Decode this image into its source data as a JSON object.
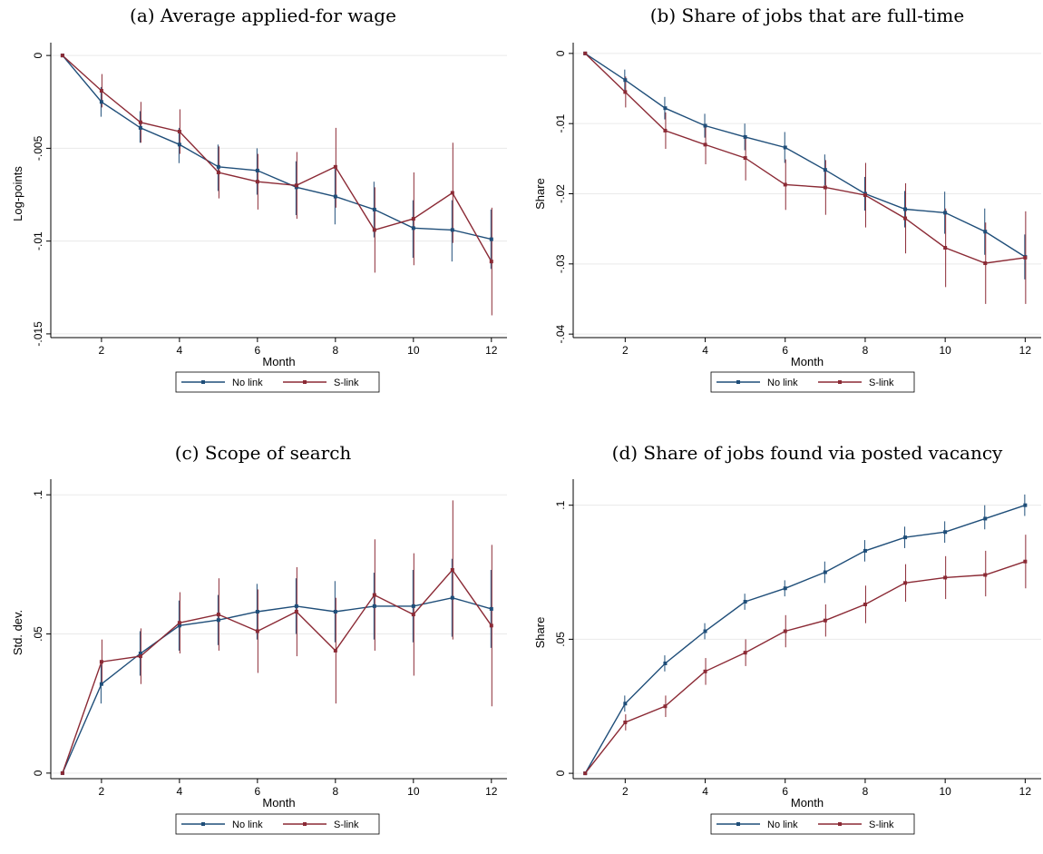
{
  "colors": {
    "no_link": "#1f4e79",
    "s_link": "#8b2a35",
    "grid": "#eaeaea"
  },
  "chart_data": [
    {
      "type": "line",
      "title": "(a) Average applied-for wage",
      "xlabel": "Month",
      "ylabel": "Log-points",
      "xlim": [
        0.7,
        12.4
      ],
      "ylim": [
        -0.0152,
        0.0003
      ],
      "xticks": [
        2,
        4,
        6,
        8,
        10,
        12
      ],
      "xtick_labels": [
        "2",
        "4",
        "6",
        "8",
        "10",
        "12"
      ],
      "yticks": [
        0,
        -0.005,
        -0.01,
        -0.015
      ],
      "ytick_labels": [
        "0",
        "-.005",
        "-.01",
        "-.015"
      ],
      "grid": true,
      "legend": {
        "position": "bottom-center",
        "entries": [
          "No link",
          "S-link"
        ]
      },
      "x": [
        1,
        2,
        3,
        4,
        5,
        6,
        7,
        8,
        9,
        10,
        11,
        12
      ],
      "series": [
        {
          "name": "No link",
          "values": [
            0,
            -0.0025,
            -0.0039,
            -0.0048,
            -0.006,
            -0.0062,
            -0.0071,
            -0.0076,
            -0.0083,
            -0.0093,
            -0.0094,
            -0.0099
          ],
          "ci_low": [
            0,
            -0.0033,
            -0.0047,
            -0.0058,
            -0.0073,
            -0.0075,
            -0.0086,
            -0.0091,
            -0.0098,
            -0.0109,
            -0.0111,
            -0.0115
          ],
          "ci_high": [
            0,
            -0.0017,
            -0.003,
            -0.0039,
            -0.0048,
            -0.005,
            -0.0057,
            -0.0061,
            -0.0068,
            -0.0078,
            -0.0078,
            -0.0083
          ]
        },
        {
          "name": "S-link",
          "values": [
            0,
            -0.0019,
            -0.0036,
            -0.0041,
            -0.0063,
            -0.0068,
            -0.007,
            -0.006,
            -0.0094,
            -0.0088,
            -0.0074,
            -0.0111
          ],
          "ci_low": [
            0,
            -0.0028,
            -0.0047,
            -0.0053,
            -0.0077,
            -0.0083,
            -0.0088,
            -0.0082,
            -0.0117,
            -0.0113,
            -0.0101,
            -0.014
          ],
          "ci_high": [
            0,
            -0.001,
            -0.0025,
            -0.0029,
            -0.0049,
            -0.0053,
            -0.0052,
            -0.0039,
            -0.0071,
            -0.0063,
            -0.0047,
            -0.0082
          ]
        }
      ]
    },
    {
      "type": "line",
      "title": "(b) Share of jobs that are full-time",
      "xlabel": "Month",
      "ylabel": "Share",
      "xlim": [
        0.7,
        12.4
      ],
      "ylim": [
        -0.0405,
        0.0005
      ],
      "xticks": [
        2,
        4,
        6,
        8,
        10,
        12
      ],
      "xtick_labels": [
        "2",
        "4",
        "6",
        "8",
        "10",
        "12"
      ],
      "yticks": [
        0,
        -0.01,
        -0.02,
        -0.03,
        -0.04
      ],
      "ytick_labels": [
        "0",
        "-.01",
        "-.02",
        "-.03",
        "-.04"
      ],
      "grid": true,
      "legend": {
        "position": "bottom-center",
        "entries": [
          "No link",
          "S-link"
        ]
      },
      "x": [
        1,
        2,
        3,
        4,
        5,
        6,
        7,
        8,
        9,
        10,
        11,
        12
      ],
      "series": [
        {
          "name": "No link",
          "values": [
            0,
            -0.0038,
            -0.0078,
            -0.0103,
            -0.0119,
            -0.0134,
            -0.0166,
            -0.02,
            -0.0222,
            -0.0227,
            -0.0254,
            -0.029
          ],
          "ci_low": [
            0,
            -0.0053,
            -0.0094,
            -0.012,
            -0.0138,
            -0.0156,
            -0.0188,
            -0.0224,
            -0.0248,
            -0.0257,
            -0.0287,
            -0.0322
          ],
          "ci_high": [
            0,
            -0.0023,
            -0.0062,
            -0.0086,
            -0.01,
            -0.0112,
            -0.0144,
            -0.0176,
            -0.0196,
            -0.0197,
            -0.0221,
            -0.0258
          ]
        },
        {
          "name": "S-link",
          "values": [
            0,
            -0.0055,
            -0.011,
            -0.013,
            -0.0149,
            -0.0187,
            -0.0191,
            -0.0202,
            -0.0235,
            -0.0277,
            -0.0299,
            -0.0291
          ],
          "ci_low": [
            0,
            -0.0077,
            -0.0136,
            -0.0158,
            -0.0181,
            -0.0223,
            -0.023,
            -0.0248,
            -0.0285,
            -0.0333,
            -0.0357,
            -0.0357
          ],
          "ci_high": [
            0,
            -0.0033,
            -0.0084,
            -0.0102,
            -0.0117,
            -0.0151,
            -0.0152,
            -0.0156,
            -0.0185,
            -0.0221,
            -0.0241,
            -0.0225
          ]
        }
      ]
    },
    {
      "type": "line",
      "title": "(c) Scope of search",
      "xlabel": "Month",
      "ylabel": "Std. dev.",
      "xlim": [
        0.7,
        12.4
      ],
      "ylim": [
        -0.002,
        0.103
      ],
      "xticks": [
        2,
        4,
        6,
        8,
        10,
        12
      ],
      "xtick_labels": [
        "2",
        "4",
        "6",
        "8",
        "10",
        "12"
      ],
      "yticks": [
        0,
        0.05,
        0.1
      ],
      "ytick_labels": [
        "0",
        ".05",
        ".1"
      ],
      "grid": true,
      "legend": {
        "position": "bottom-center",
        "entries": [
          "No link",
          "S-link"
        ]
      },
      "x": [
        1,
        2,
        3,
        4,
        5,
        6,
        7,
        8,
        9,
        10,
        11,
        12
      ],
      "series": [
        {
          "name": "No link",
          "values": [
            0,
            0.032,
            0.043,
            0.053,
            0.055,
            0.058,
            0.06,
            0.058,
            0.06,
            0.06,
            0.063,
            0.059
          ],
          "ci_low": [
            0,
            0.025,
            0.035,
            0.044,
            0.046,
            0.048,
            0.05,
            0.047,
            0.048,
            0.047,
            0.049,
            0.045
          ],
          "ci_high": [
            0,
            0.039,
            0.051,
            0.062,
            0.064,
            0.068,
            0.07,
            0.069,
            0.072,
            0.073,
            0.077,
            0.073
          ]
        },
        {
          "name": "S-link",
          "values": [
            0,
            0.04,
            0.042,
            0.054,
            0.057,
            0.051,
            0.058,
            0.044,
            0.064,
            0.057,
            0.073,
            0.053
          ],
          "ci_low": [
            0,
            0.032,
            0.032,
            0.043,
            0.044,
            0.036,
            0.042,
            0.025,
            0.044,
            0.035,
            0.048,
            0.024
          ],
          "ci_high": [
            0,
            0.048,
            0.052,
            0.065,
            0.07,
            0.066,
            0.074,
            0.063,
            0.084,
            0.079,
            0.098,
            0.082
          ]
        }
      ]
    },
    {
      "type": "line",
      "title": "(d) Share of jobs found via posted vacancy",
      "xlabel": "Month",
      "ylabel": "Share",
      "xlim": [
        0.7,
        12.4
      ],
      "ylim": [
        -0.002,
        0.107
      ],
      "xticks": [
        2,
        4,
        6,
        8,
        10,
        12
      ],
      "xtick_labels": [
        "2",
        "4",
        "6",
        "8",
        "10",
        "12"
      ],
      "yticks": [
        0,
        0.05,
        0.1
      ],
      "ytick_labels": [
        "0",
        ".05",
        ".1"
      ],
      "grid": true,
      "legend": {
        "position": "bottom-center",
        "entries": [
          "No link",
          "S-link"
        ]
      },
      "x": [
        1,
        2,
        3,
        4,
        5,
        6,
        7,
        8,
        9,
        10,
        11,
        12
      ],
      "series": [
        {
          "name": "No link",
          "values": [
            0,
            0.026,
            0.041,
            0.053,
            0.064,
            0.069,
            0.075,
            0.083,
            0.088,
            0.09,
            0.095,
            0.1
          ],
          "ci_low": [
            0,
            0.023,
            0.038,
            0.05,
            0.061,
            0.066,
            0.071,
            0.079,
            0.084,
            0.086,
            0.091,
            0.096
          ],
          "ci_high": [
            0,
            0.029,
            0.044,
            0.056,
            0.067,
            0.072,
            0.079,
            0.087,
            0.092,
            0.094,
            0.1,
            0.104
          ]
        },
        {
          "name": "S-link",
          "values": [
            0,
            0.019,
            0.025,
            0.038,
            0.045,
            0.053,
            0.057,
            0.063,
            0.071,
            0.073,
            0.074,
            0.079
          ],
          "ci_low": [
            0,
            0.016,
            0.021,
            0.033,
            0.04,
            0.047,
            0.051,
            0.056,
            0.064,
            0.065,
            0.066,
            0.069
          ],
          "ci_high": [
            0,
            0.022,
            0.029,
            0.043,
            0.05,
            0.059,
            0.063,
            0.07,
            0.078,
            0.081,
            0.083,
            0.089
          ]
        }
      ]
    }
  ]
}
